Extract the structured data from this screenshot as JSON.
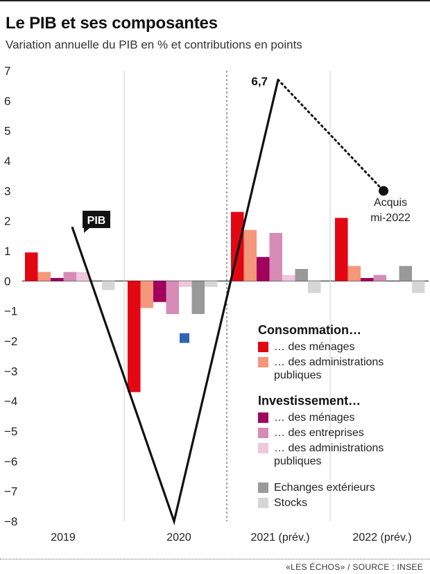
{
  "title": "Le PIB et ses composantes",
  "subtitle": "Variation annuelle du PIB en % et contributions en points",
  "footer": "«LES ÉCHOS» / SOURCE : INSEE",
  "chart_data": {
    "type": "bar",
    "ylim": [
      -8,
      7
    ],
    "yticks": [
      "7",
      "6",
      "5",
      "4",
      "3",
      "2",
      "1",
      "0",
      "-1",
      "-2",
      "-3",
      "-4",
      "-5",
      "-6",
      "-7",
      "-8"
    ],
    "categories": [
      "2019",
      "2020",
      "2021 (prév.)",
      "2022 (prév.)"
    ],
    "legend_groups": [
      {
        "title": "Consommation…",
        "items": [
          {
            "label": "… des ménages",
            "color": "#e30613"
          },
          {
            "label": "… des administrations publiques",
            "color": "#f4977b"
          }
        ]
      },
      {
        "title": "Investissement…",
        "items": [
          {
            "label": "… des ménages",
            "color": "#a2005d"
          },
          {
            "label": "… des entreprises",
            "color": "#d68cb6"
          },
          {
            "label": "… des administrations publiques",
            "color": "#edc8dd"
          }
        ]
      },
      {
        "title": "",
        "items": [
          {
            "label": "Echanges extérieurs",
            "color": "#999999"
          },
          {
            "label": "Stocks",
            "color": "#d6d6d6"
          }
        ]
      }
    ],
    "series": [
      {
        "values": [
          0.95,
          -3.7,
          2.3,
          2.1
        ],
        "color": "#e30613"
      },
      {
        "values": [
          0.3,
          -0.9,
          1.7,
          0.5
        ],
        "color": "#f4977b"
      },
      {
        "values": [
          0.1,
          -0.7,
          0.8,
          0.1
        ],
        "color": "#a2005d"
      },
      {
        "values": [
          0.3,
          -1.1,
          1.6,
          0.2
        ],
        "color": "#d68cb6"
      },
      {
        "values": [
          0.3,
          -0.2,
          0.2,
          0.0
        ],
        "color": "#edc8dd"
      },
      {
        "values": [
          0.0,
          -1.1,
          0.4,
          0.5
        ],
        "color": "#999999"
      },
      {
        "values": [
          -0.3,
          -0.2,
          -0.4,
          -0.4
        ],
        "color": "#d6d6d6"
      }
    ],
    "extra_marker": {
      "value": -1.9,
      "color": "#2f64b3"
    },
    "pib_line": {
      "label": "PIB",
      "values": [
        1.8,
        -8.0,
        6.7
      ],
      "peak_label": "6,7",
      "projection": {
        "value": 3.0,
        "label_line1": "Acquis",
        "label_line2": "mi-2022"
      }
    }
  }
}
